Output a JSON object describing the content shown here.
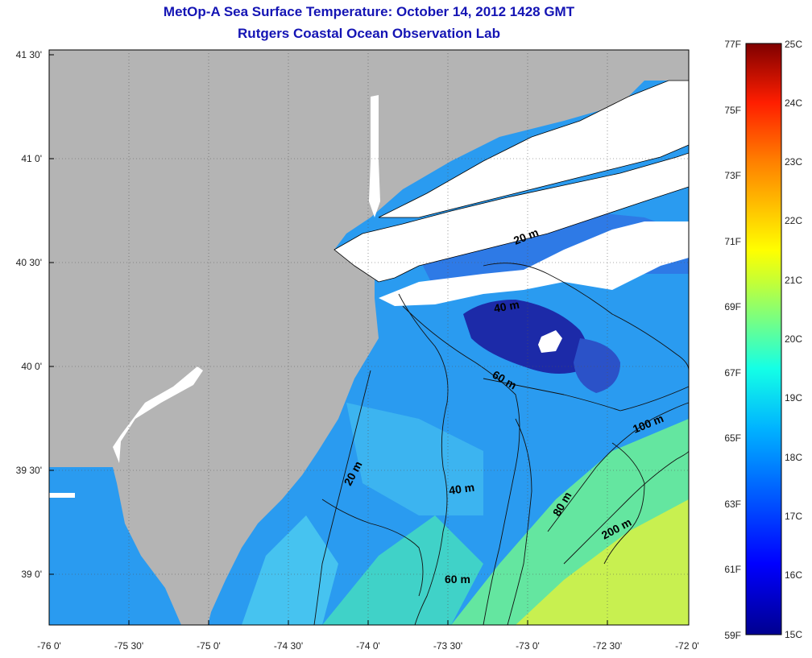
{
  "title": {
    "line1": "MetOp-A Sea Surface Temperature:  October 14, 2012 1428 GMT",
    "line2": "Rutgers Coastal Ocean Observation Lab"
  },
  "axes": {
    "lon_ticks": [
      "-76 0'",
      "-75 30'",
      "-75 0'",
      "-74 30'",
      "-74 0'",
      "-73 30'",
      "-73 0'",
      "-72 30'",
      "-72 0'"
    ],
    "lat_ticks": [
      "41 30'",
      "41 0'",
      "40 30'",
      "40 0'",
      "39 30'",
      "39 0'"
    ]
  },
  "contours": [
    "20 m",
    "40 m",
    "60 m",
    "20 m",
    "40 m",
    "60 m",
    "80 m",
    "100 m",
    "200 m"
  ],
  "colorbar": {
    "fahrenheit": [
      "77F",
      "75F",
      "73F",
      "71F",
      "69F",
      "67F",
      "65F",
      "63F",
      "61F",
      "59F"
    ],
    "celsius": [
      "25C",
      "24C",
      "23C",
      "22C",
      "21C",
      "20C",
      "19C",
      "18C",
      "17C",
      "16C",
      "15C"
    ]
  },
  "colors": {
    "land": "#b4b4b4",
    "cloud": "#ffffff",
    "title": "#1414b4"
  }
}
